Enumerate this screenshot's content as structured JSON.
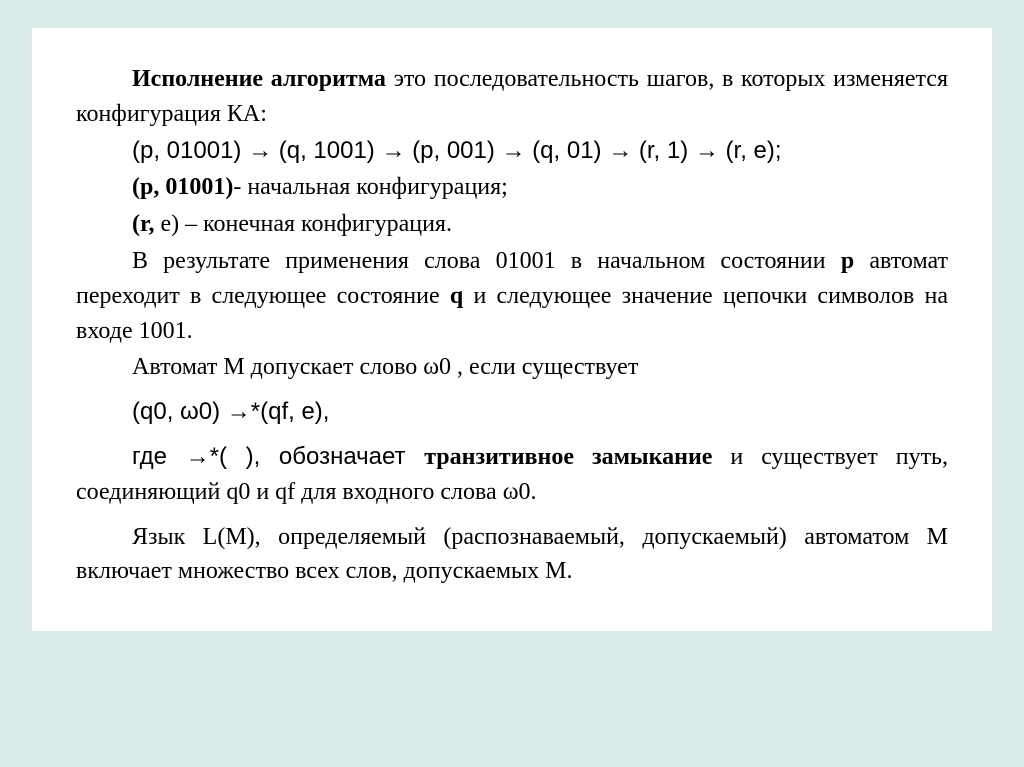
{
  "doc": {
    "background_color": "#dcecea",
    "page_color": "#ffffff",
    "text_color": "#000000",
    "font_family": "Times New Roman",
    "font_size_pt": 18,
    "p1": {
      "bold_lead": "Исполнение алгоритма",
      "rest": " это последовательность шагов, в которых изменяется конфигурация КА:"
    },
    "p2": "(p, 01001) → (q, 1001) → (p, 001)  → (q, 01)  → (r, 1) → (r, e);",
    "p3": {
      "bold": "(p, 01001)",
      "rest": "- начальная конфигурация;"
    },
    "p4": {
      "bold": "(r,",
      "rest": " e) – конечная конфигурация."
    },
    "p5": {
      "a": "В результате применения слова 01001  в начальном состоянии ",
      "b": "p",
      "c": " автомат переходит в следующее состояние ",
      "d": "q",
      "e": " и следующее значение цепочки символов на входе 1001."
    },
    "p6": "Автомат  M допускает слово ω0 ,  если существует",
    "p7": "(q0, ω0)  →*(qf, e),",
    "p8": {
      "a": "где →*( ), обозначает ",
      "b": "транзитивное замыкание",
      "c": " и существует путь, соединяющий q0 и qf  для входного слова ω0."
    },
    "p9": "Язык L(M), определяемый (распознаваемый, допускаемый) автоматом M включает множество всех слов, допускаемых M."
  }
}
